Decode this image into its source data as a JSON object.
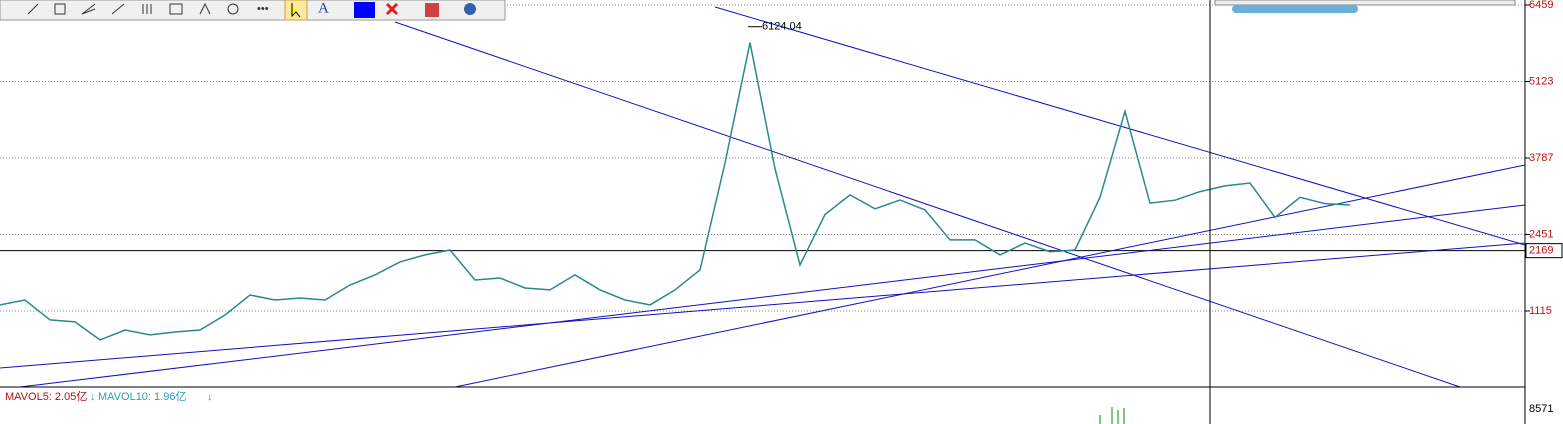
{
  "chart_data": {
    "type": "line",
    "values": [
      1221,
      1308,
      959,
      924,
      610,
      784,
      697,
      749,
      784,
      1046,
      1395,
      1308,
      1343,
      1308,
      1570,
      1745,
      1972,
      2094,
      2181,
      1657,
      1692,
      1517,
      1483,
      1745,
      1483,
      1308,
      1221,
      1483,
      1832,
      3700,
      5800,
      3600,
      1919,
      2800,
      3142,
      2900,
      3054,
      2880,
      2356,
      2356,
      2094,
      2300,
      2150,
      2181,
      3100,
      4600,
      3000,
      3050,
      3200,
      3300,
      3350,
      2750,
      3100,
      2990,
      2967
    ],
    "color": "#2a8a8a",
    "ylim": [
      -212,
      6546
    ],
    "yticks": [
      6459,
      5123,
      3787,
      2451,
      1115
    ],
    "grid": true,
    "reference_line": 2169,
    "annotation": "6124.04",
    "volume_pane": {
      "mavol5": "MAVOL5: 2.05亿",
      "mavol10": "MAVOL10: 1.96亿",
      "ytick": 8571
    }
  }
}
